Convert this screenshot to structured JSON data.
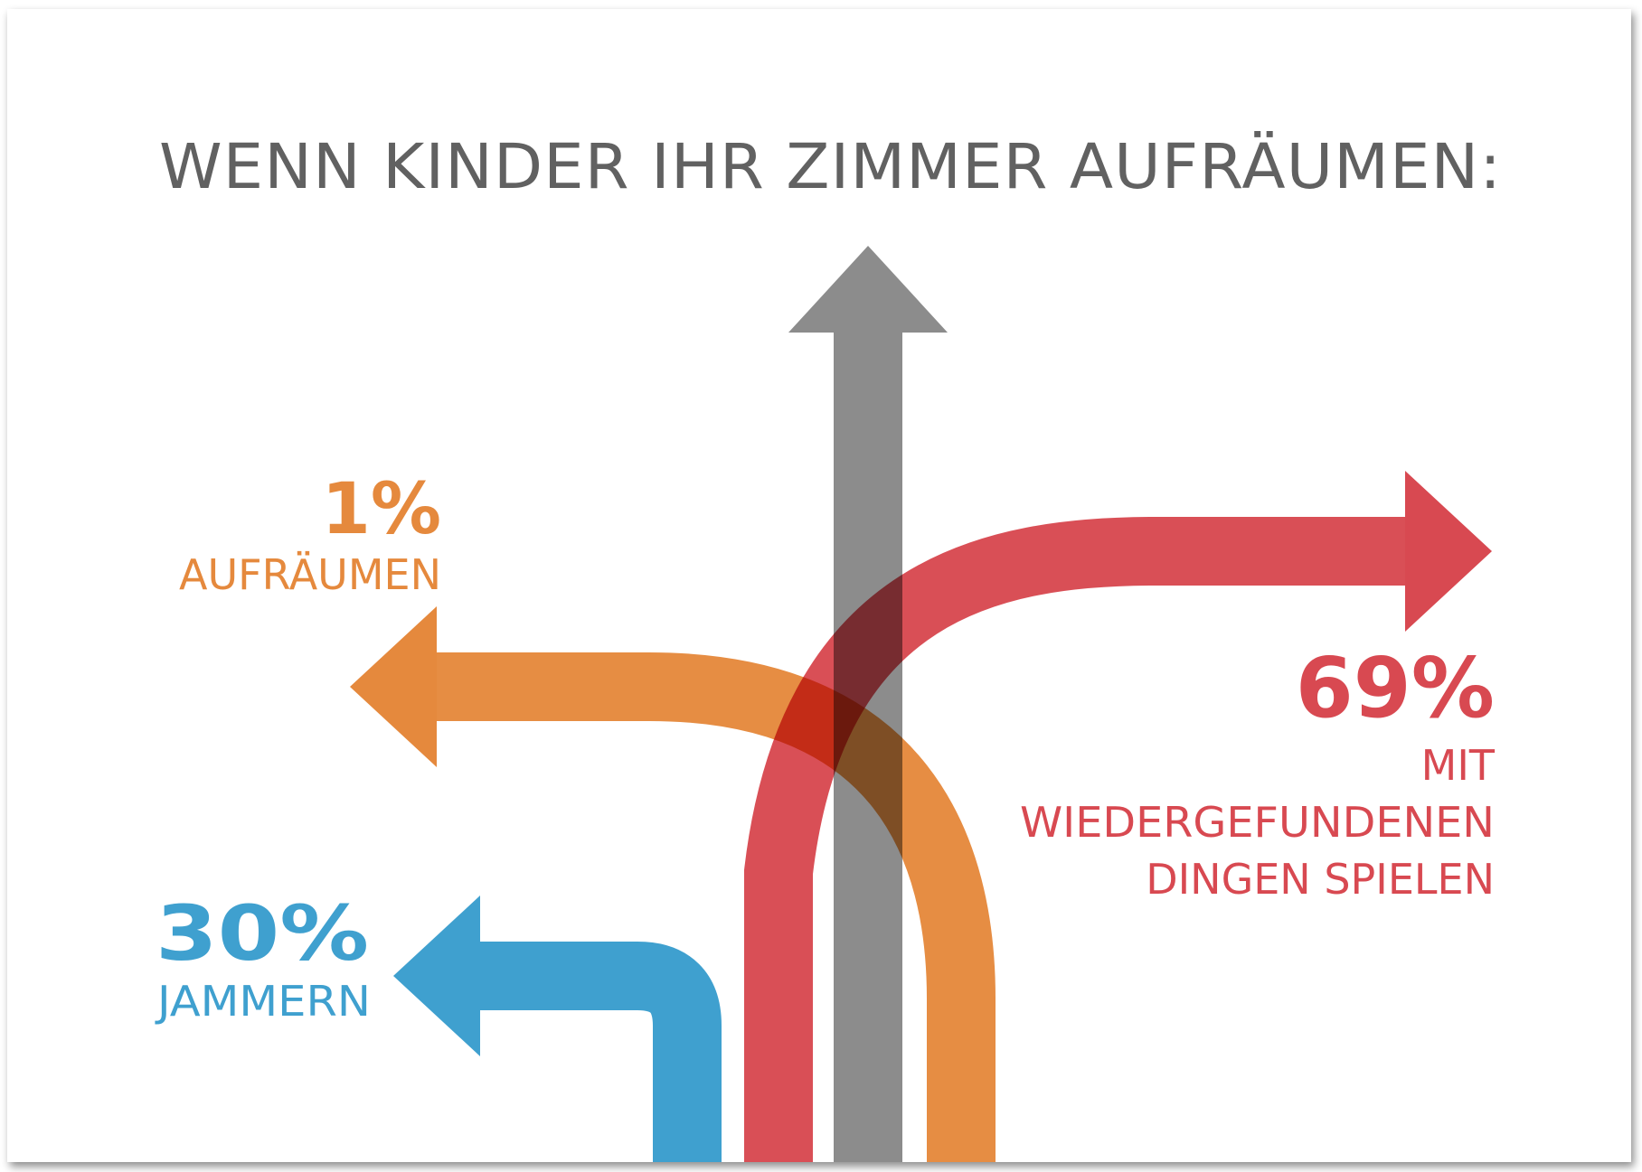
{
  "title": "WENN KINDER IHR ZIMMER AUFRÄUMEN:",
  "colors": {
    "gray": "#8c8c8c",
    "orange": "#e5893d",
    "red": "#d84951",
    "blue": "#3fa0cf",
    "title": "#616161"
  },
  "outcomes": [
    {
      "key": "aufraeumen",
      "percent": "1%",
      "value": 1,
      "label_lines": [
        "AUFRÄUMEN"
      ],
      "color": "#e5893d",
      "direction": "left"
    },
    {
      "key": "jammern",
      "percent": "30%",
      "value": 30,
      "label_lines": [
        "JAMMERN"
      ],
      "color": "#3fa0cf",
      "direction": "left"
    },
    {
      "key": "spielen",
      "percent": "69%",
      "value": 69,
      "label_lines": [
        "MIT",
        "WIEDERGEFUNDENEN",
        "DINGEN SPIELEN"
      ],
      "color": "#d84951",
      "direction": "right"
    }
  ]
}
